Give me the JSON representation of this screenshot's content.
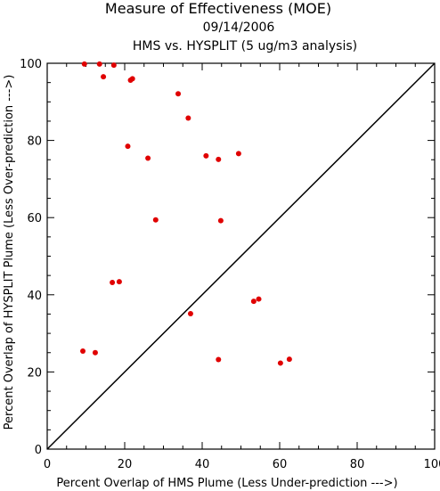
{
  "chart_data": {
    "type": "scatter",
    "title": "Measure of Effectiveness (MOE)",
    "subtitle_date": "09/14/2006",
    "subtitle_analysis": "HMS vs. HYSPLIT  (5 ug/m3 analysis)",
    "xlabel": "Percent Overlap of HMS Plume (Less Under-prediction --->)",
    "ylabel": "Percent Overlap of HYSPLIT Plume (Less Over-prediction --->)",
    "xlim": [
      0,
      100
    ],
    "ylim": [
      0,
      100
    ],
    "xticks": [
      "0",
      "20",
      "40",
      "60",
      "80",
      "100"
    ],
    "yticks": [
      "0",
      "20",
      "40",
      "60",
      "80",
      "100"
    ],
    "grid": false,
    "reference_line": "1:1 diagonal",
    "point_color": "#e00000",
    "points": [
      {
        "x": 9.6,
        "y": 99.8
      },
      {
        "x": 13.5,
        "y": 99.8
      },
      {
        "x": 17.2,
        "y": 99.5
      },
      {
        "x": 14.5,
        "y": 96.5
      },
      {
        "x": 21.5,
        "y": 95.6
      },
      {
        "x": 22.0,
        "y": 96.0
      },
      {
        "x": 33.8,
        "y": 92.1
      },
      {
        "x": 36.4,
        "y": 85.8
      },
      {
        "x": 20.8,
        "y": 78.5
      },
      {
        "x": 26.0,
        "y": 75.4
      },
      {
        "x": 41.0,
        "y": 76.0
      },
      {
        "x": 44.2,
        "y": 75.1
      },
      {
        "x": 49.4,
        "y": 76.6
      },
      {
        "x": 28.0,
        "y": 59.4
      },
      {
        "x": 44.8,
        "y": 59.2
      },
      {
        "x": 16.8,
        "y": 43.2
      },
      {
        "x": 18.6,
        "y": 43.4
      },
      {
        "x": 37.0,
        "y": 35.1
      },
      {
        "x": 53.3,
        "y": 38.3
      },
      {
        "x": 54.6,
        "y": 38.9
      },
      {
        "x": 9.2,
        "y": 25.4
      },
      {
        "x": 12.4,
        "y": 25.0
      },
      {
        "x": 44.2,
        "y": 23.2
      },
      {
        "x": 60.2,
        "y": 22.3
      },
      {
        "x": 62.5,
        "y": 23.3
      }
    ]
  }
}
